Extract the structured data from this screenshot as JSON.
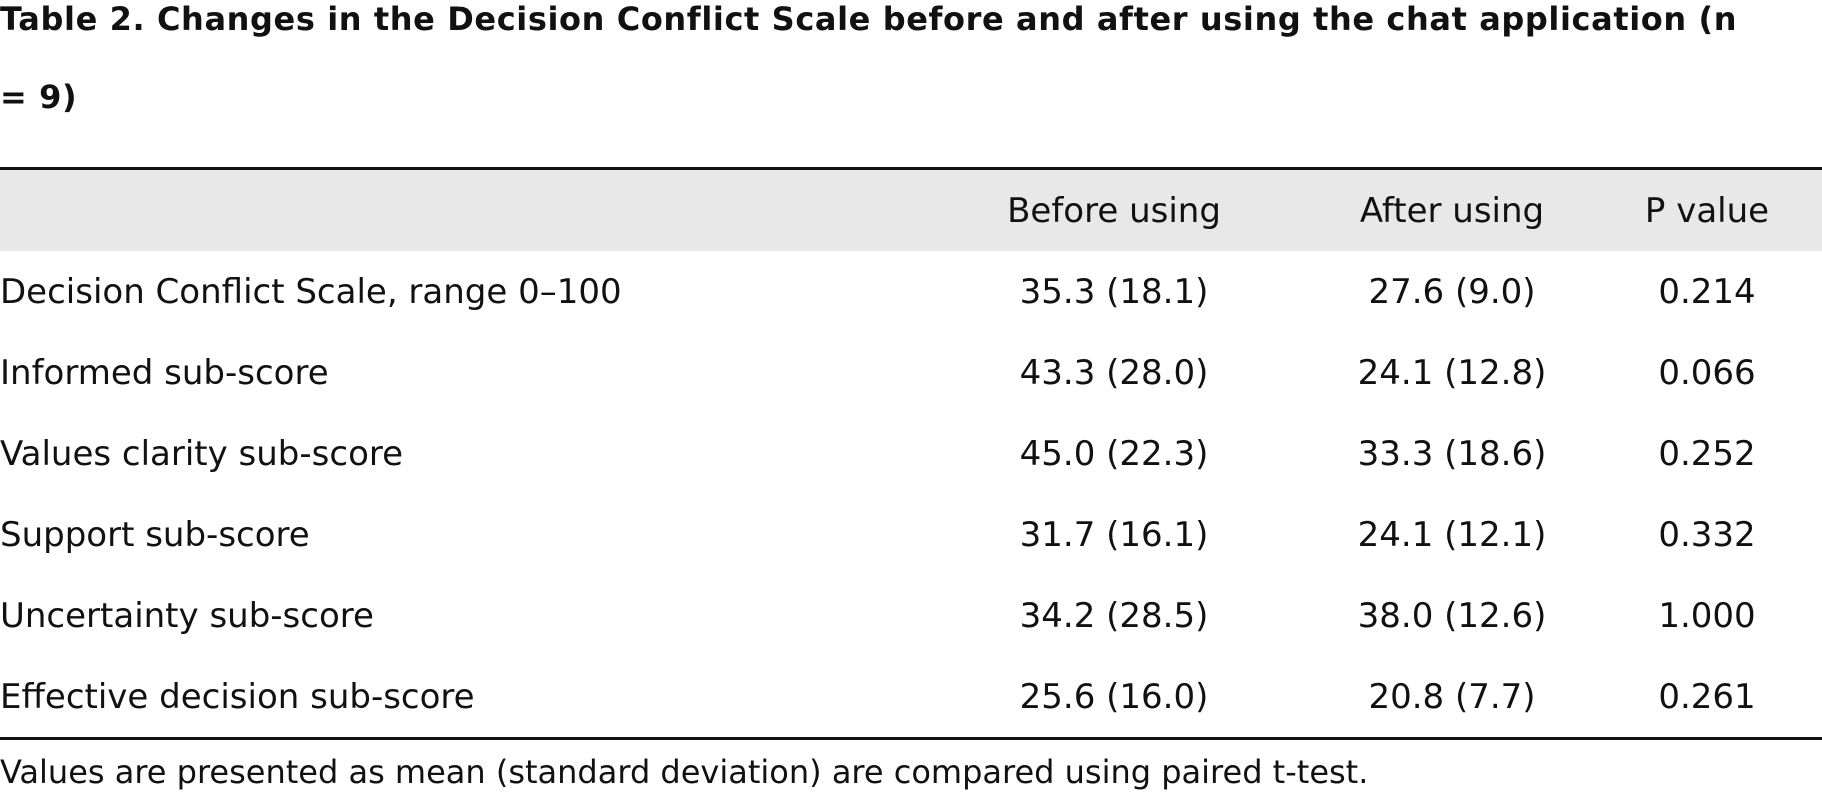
{
  "caption": {
    "line1": "Table 2. Changes in the Decision Conflict Scale before and after using the chat application (n",
    "line2": "= 9)"
  },
  "table": {
    "headers": [
      "",
      "Before using",
      "After using",
      "P value"
    ],
    "rows": [
      {
        "label": "Decision Conflict Scale, range 0–100",
        "before": "35.3 (18.1)",
        "after": "27.6 (9.0)",
        "p": "0.214"
      },
      {
        "label": "Informed sub-score",
        "before": "43.3 (28.0)",
        "after": "24.1 (12.8)",
        "p": "0.066"
      },
      {
        "label": "Values clarity sub-score",
        "before": "45.0 (22.3)",
        "after": "33.3 (18.6)",
        "p": "0.252"
      },
      {
        "label": "Support sub-score",
        "before": "31.7 (16.1)",
        "after": "24.1 (12.1)",
        "p": "0.332"
      },
      {
        "label": "Uncertainty sub-score",
        "before": "34.2 (28.5)",
        "after": "38.0 (12.6)",
        "p": "1.000"
      },
      {
        "label": "Effective decision sub-score",
        "before": "25.6 (16.0)",
        "after": "20.8 (7.7)",
        "p": "0.261"
      }
    ]
  },
  "footnote": "Values are presented as mean (standard deviation) are compared using paired t-test."
}
